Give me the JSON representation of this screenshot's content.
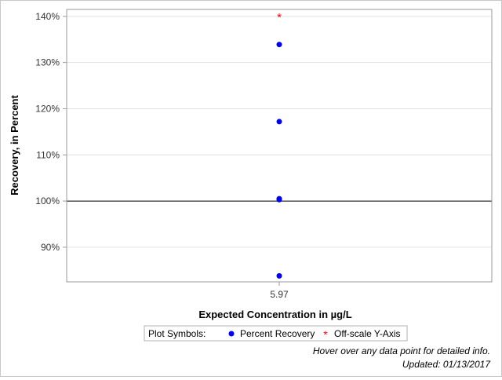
{
  "chart_data": {
    "type": "scatter",
    "xlabel": "Expected Concentration in µg/L",
    "ylabel": "Recovery, in Percent",
    "x_categories": [
      "5.97"
    ],
    "ylim": [
      82.5,
      141.5
    ],
    "y_ticks": [
      90,
      100,
      110,
      120,
      130,
      140
    ],
    "y_tick_labels": [
      "90%",
      "100%",
      "110%",
      "120%",
      "130%",
      "140%"
    ],
    "grid": true,
    "reference_line": 100,
    "series": [
      {
        "name": "Percent Recovery",
        "color": "#0000ff",
        "marker": "circle",
        "points": [
          {
            "x": "5.97",
            "y": 133.9
          },
          {
            "x": "5.97",
            "y": 117.2
          },
          {
            "x": "5.97",
            "y": 100.5
          },
          {
            "x": "5.97",
            "y": 100.3
          },
          {
            "x": "5.97",
            "y": 83.8
          }
        ]
      },
      {
        "name": "Off-scale Y-Axis",
        "color": "#ff0000",
        "marker": "asterisk",
        "points": [
          {
            "x": "5.97",
            "y": 140
          }
        ]
      }
    ],
    "legend": {
      "title": "Plot Symbols:",
      "position": "bottom-center"
    }
  },
  "footnotes": {
    "hover_hint": "Hover over any data point for detailed info.",
    "updated": "Updated: 01/13/2017"
  }
}
